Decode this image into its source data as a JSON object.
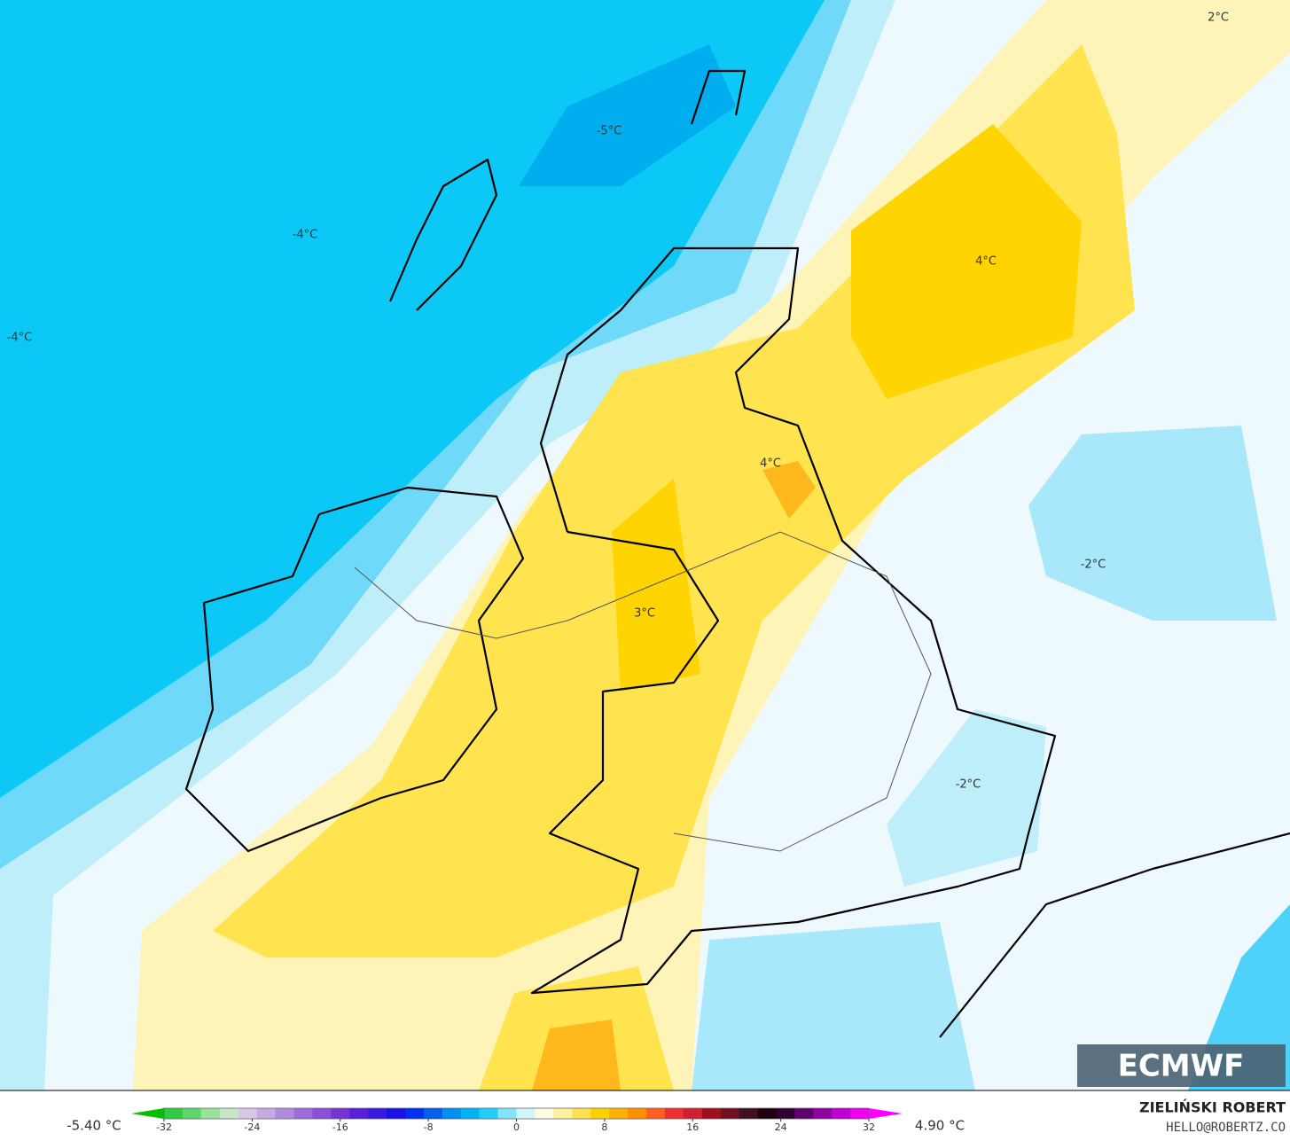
{
  "map": {
    "labels": [
      "-5°C",
      "-4°C",
      "-4°C",
      "2°C",
      "4°C",
      "4°C",
      "3°C",
      "-2°C",
      "-2°C"
    ]
  },
  "colorbar": {
    "min_label": "-5.40 °C",
    "max_label": "4.90 °C",
    "ticks": [
      -32,
      -24,
      -16,
      -8,
      0,
      8,
      16,
      24,
      32
    ]
  },
  "credit": {
    "author": "ZIELIŃSKI ROBERT",
    "email": "HELLO@ROBERTZ.CO"
  },
  "logo": "ECMWF"
}
